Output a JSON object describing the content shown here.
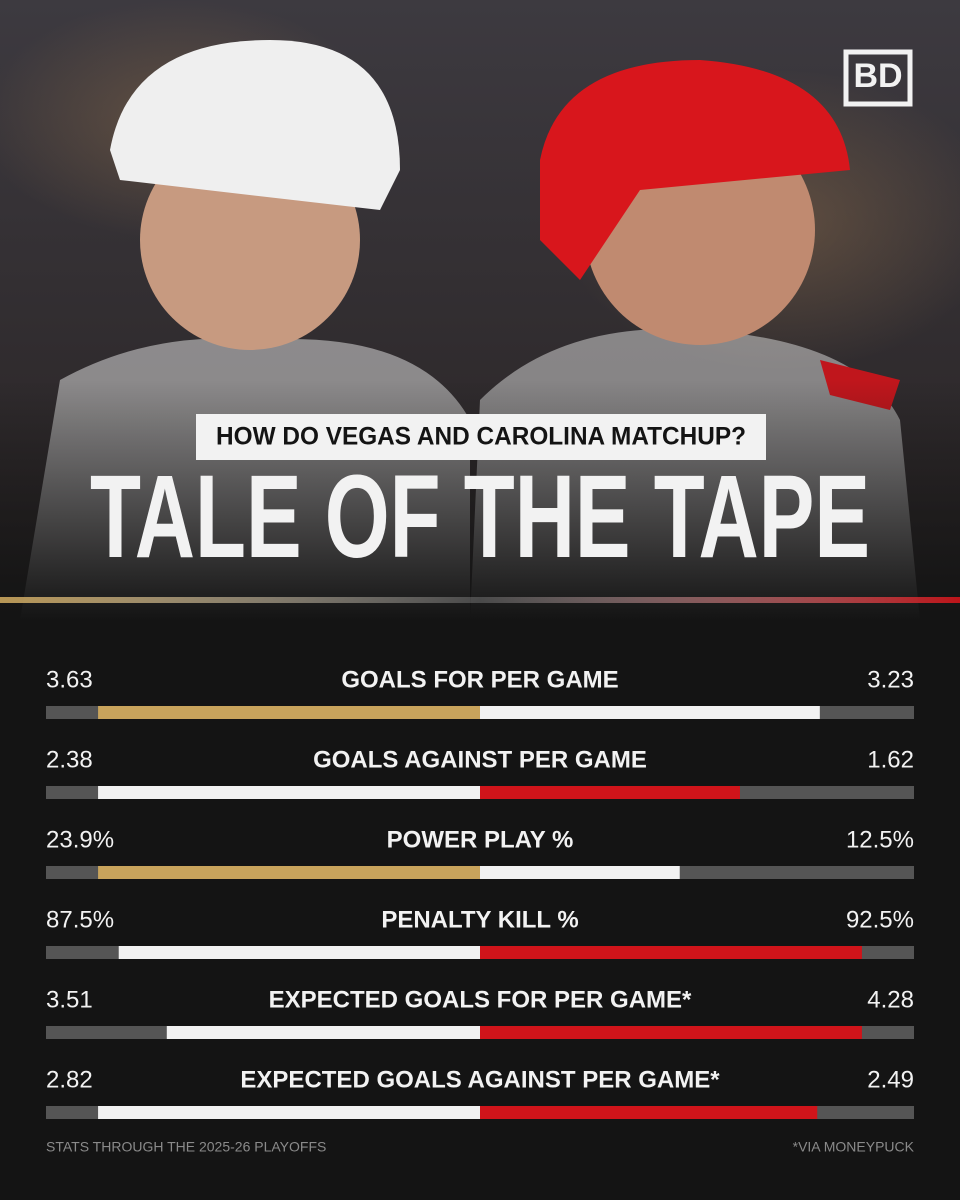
{
  "header": {
    "subtitle": "HOW DO VEGAS AND CAROLINA MATCHUP?",
    "title": "TALE OF THE TAPE",
    "logo": "BD"
  },
  "stats": {
    "rows": [
      {
        "label": "GOALS FOR PER GAME",
        "left": {
          "value": 3.63,
          "label": "3.63"
        },
        "right": {
          "value": 3.23,
          "label": "3.23"
        },
        "left_color": "#c9a45c",
        "right_color": "#f2f2f2"
      },
      {
        "label": "GOALS AGAINST PER GAME",
        "left": {
          "value": 2.38,
          "label": "2.38"
        },
        "right": {
          "value": 1.62,
          "label": "1.62"
        },
        "left_color": "#f2f2f2",
        "right_color": "#d0141a"
      },
      {
        "label": "POWER PLAY %",
        "left": {
          "value": 23.9,
          "label": "23.9%"
        },
        "right": {
          "value": 12.5,
          "label": "12.5%"
        },
        "left_color": "#c9a45c",
        "right_color": "#f2f2f2"
      },
      {
        "label": "PENALTY KILL %",
        "left": {
          "value": 87.5,
          "label": "87.5%"
        },
        "right": {
          "value": 92.5,
          "label": "92.5%"
        },
        "left_color": "#f2f2f2",
        "right_color": "#d0141a"
      },
      {
        "label": "EXPECTED GOALS FOR PER GAME*",
        "left": {
          "value": 3.51,
          "label": "3.51"
        },
        "right": {
          "value": 4.28,
          "label": "4.28"
        },
        "left_color": "#f2f2f2",
        "right_color": "#d0141a"
      },
      {
        "label": "EXPECTED GOALS AGAINST PER GAME*",
        "left": {
          "value": 2.82,
          "label": "2.82"
        },
        "right": {
          "value": 2.49,
          "label": "2.49"
        },
        "left_color": "#f2f2f2",
        "right_color": "#d0141a"
      }
    ]
  },
  "footer": {
    "left": "STATS THROUGH THE 2025-26 PLAYOFFS",
    "right": "*VIA MONEYPUCK"
  }
}
